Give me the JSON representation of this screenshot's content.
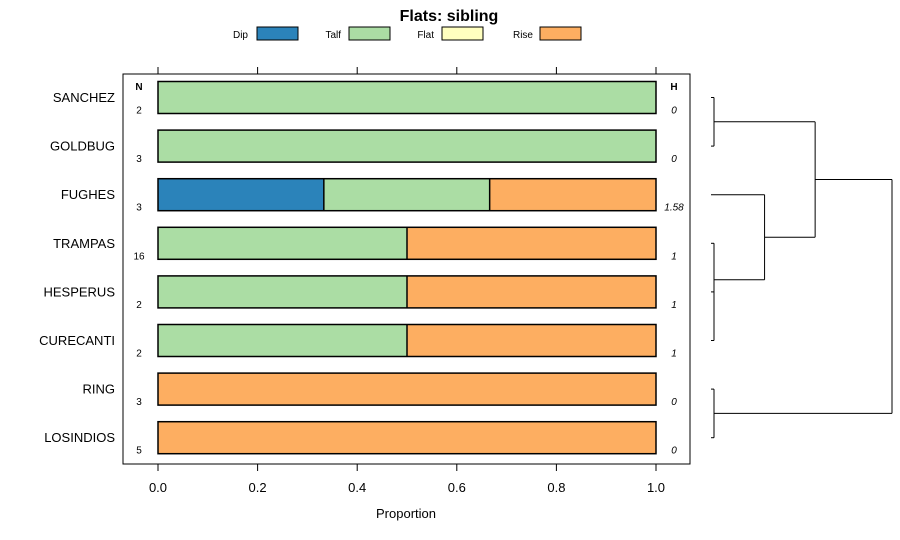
{
  "chart_data": {
    "type": "bar",
    "orientation": "horizontal",
    "stacked": true,
    "title": "Flats: sibling",
    "xlabel": "Proportion",
    "xlim": [
      0,
      1
    ],
    "xticks": [
      0.0,
      0.2,
      0.4,
      0.6,
      0.8,
      1.0
    ],
    "xtick_labels": [
      "0.0",
      "0.2",
      "0.4",
      "0.6",
      "0.8",
      "1.0"
    ],
    "n_header": "N",
    "h_header": "H",
    "legend_position": "top",
    "series": [
      {
        "name": "Dip",
        "color": "#2b83ba"
      },
      {
        "name": "Talf",
        "color": "#abdda4"
      },
      {
        "name": "Flat",
        "color": "#ffffbf"
      },
      {
        "name": "Rise",
        "color": "#fdae61"
      }
    ],
    "categories": [
      {
        "name": "SANCHEZ",
        "n": "2",
        "h": "0",
        "values": [
          0,
          1,
          0,
          0
        ]
      },
      {
        "name": "GOLDBUG",
        "n": "3",
        "h": "0",
        "values": [
          0,
          1,
          0,
          0
        ]
      },
      {
        "name": "FUGHES",
        "n": "3",
        "h": "1.58",
        "values": [
          0.333,
          0.333,
          0,
          0.334
        ]
      },
      {
        "name": "TRAMPAS",
        "n": "16",
        "h": "1",
        "values": [
          0,
          0.5,
          0,
          0.5
        ]
      },
      {
        "name": "HESPERUS",
        "n": "2",
        "h": "1",
        "values": [
          0,
          0.5,
          0,
          0.5
        ]
      },
      {
        "name": "CURECANTI",
        "n": "2",
        "h": "1",
        "values": [
          0,
          0.5,
          0,
          0.5
        ]
      },
      {
        "name": "RING",
        "n": "3",
        "h": "0",
        "values": [
          0,
          0,
          0,
          1
        ]
      },
      {
        "name": "LOSINDIOS",
        "n": "5",
        "h": "0",
        "values": [
          0,
          0,
          0,
          1
        ]
      }
    ],
    "dendrogram": {
      "leaf_order": [
        "SANCHEZ",
        "GOLDBUG",
        "FUGHES",
        "TRAMPAS",
        "HESPERUS",
        "CURECANTI",
        "RING",
        "LOSINDIOS"
      ],
      "merges": [
        {
          "a": "HESPERUS",
          "b": "CURECANTI",
          "height": 0.0
        },
        {
          "a": "TRAMPAS",
          "b": "HESPERUS+CURECANTI",
          "height": 0.0
        },
        {
          "a": "SANCHEZ",
          "b": "GOLDBUG",
          "height": 0.0
        },
        {
          "a": "RING",
          "b": "LOSINDIOS",
          "height": 0.0
        },
        {
          "a": "FUGHES",
          "b": "TRAMPAS+HESPERUS+CURECANTI",
          "height": 0.25
        },
        {
          "a": "SANCHEZ+GOLDBUG",
          "b": "FUGHES+TRAMPAS+HESPERUS+CURECANTI",
          "height": 0.5
        },
        {
          "a": "SANCHEZ+GOLDBUG+FUGHES+TRAMPAS+HESPERUS+CURECANTI",
          "b": "RING+LOSINDIOS",
          "height": 0.88
        }
      ]
    }
  }
}
